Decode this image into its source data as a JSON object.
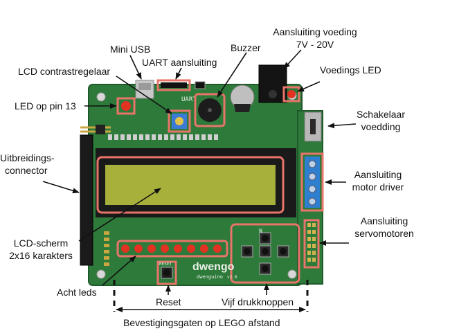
{
  "labels": {
    "power_connection_line1": "Aansluiting voeding",
    "power_connection_line2": "7V - 20V",
    "mini_usb": "Mini USB",
    "buzzer": "Buzzer",
    "lcd_contrast": "LCD contrastregelaar",
    "uart": "UART aansluiting",
    "power_led": "Voedings LED",
    "led_pin13": "LED op pin 13",
    "power_switch_line1": "Schakelaar",
    "power_switch_line2": "voedding",
    "expansion_line1": "Uitbreidings-",
    "expansion_line2": "connector",
    "motor_line1": "Aansluiting",
    "motor_line2": "motor driver",
    "servo_line1": "Aansluiting",
    "servo_line2": "servomotoren",
    "lcd_line1": "LCD-scherm",
    "lcd_line2": "2x16 karakters",
    "eight_leds": "Acht leds",
    "reset": "Reset",
    "five_buttons": "Vijf drukknoppen",
    "mounting_holes": "Bevestigingsgaten op LEGO afstand"
  },
  "board": {
    "brand": "dwengo",
    "model": "dwenguino",
    "version": "v2.0",
    "silk_uart": "UART",
    "silk_reset": "RESET",
    "silk_button_n": "N"
  },
  "colors": {
    "pcb": "#2e7a3a",
    "pcb_edge": "#1f5a2a",
    "highlight": "#e8746a",
    "lcd_screen": "#a6b03a",
    "motor_terminal": "#2f7fd0",
    "led_red": "#e23222"
  }
}
